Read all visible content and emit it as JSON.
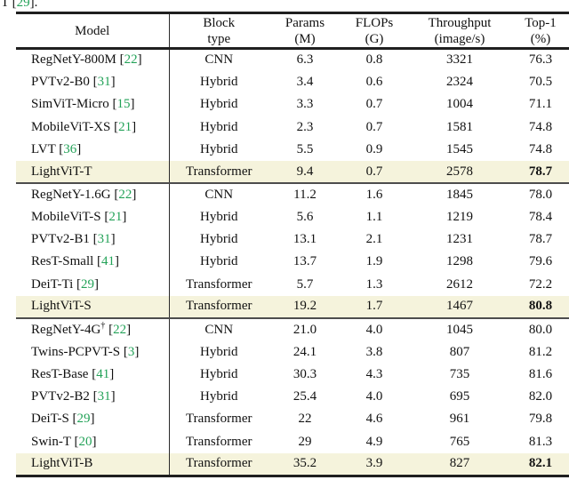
{
  "caption_fragment": {
    "prefix": "T [",
    "citation": "29",
    "suffix": "]."
  },
  "colors": {
    "citation_green": "#23a258",
    "highlight_row": "#f5f3dc",
    "rule_dark": "#1f1f1f",
    "rule_medium": "#4d4d4d",
    "text": "#111111"
  },
  "chart_data": {
    "type": "table",
    "title": "",
    "columns": [
      "Model",
      "Block type",
      "Params (M)",
      "FLOPs (G)",
      "Throughput (image/s)",
      "Top-1 (%)"
    ]
  },
  "table": {
    "columns": [
      {
        "id": "model",
        "line1": "Model",
        "line2": ""
      },
      {
        "id": "block_type",
        "line1": "Block",
        "line2": "type"
      },
      {
        "id": "params",
        "line1": "Params",
        "line2": "(M)"
      },
      {
        "id": "flops",
        "line1": "FLOPs",
        "line2": "(G)"
      },
      {
        "id": "throughput",
        "line1": "Throughput",
        "line2": "(image/s)"
      },
      {
        "id": "top1",
        "line1": "Top-1",
        "line2": "(%)"
      }
    ],
    "groups": [
      {
        "rows": [
          {
            "model": "RegNetY-800M",
            "citation": "22",
            "dagger": false,
            "block_type": "CNN",
            "params": "6.3",
            "flops": "0.8",
            "throughput": "3321",
            "top1": "76.3",
            "highlight": false,
            "top1_bold": false
          },
          {
            "model": "PVTv2-B0",
            "citation": "31",
            "dagger": false,
            "block_type": "Hybrid",
            "params": "3.4",
            "flops": "0.6",
            "throughput": "2324",
            "top1": "70.5",
            "highlight": false,
            "top1_bold": false
          },
          {
            "model": "SimViT-Micro",
            "citation": "15",
            "dagger": false,
            "block_type": "Hybrid",
            "params": "3.3",
            "flops": "0.7",
            "throughput": "1004",
            "top1": "71.1",
            "highlight": false,
            "top1_bold": false
          },
          {
            "model": "MobileViT-XS",
            "citation": "21",
            "dagger": false,
            "block_type": "Hybrid",
            "params": "2.3",
            "flops": "0.7",
            "throughput": "1581",
            "top1": "74.8",
            "highlight": false,
            "top1_bold": false
          },
          {
            "model": "LVT",
            "citation": "36",
            "dagger": false,
            "block_type": "Hybrid",
            "params": "5.5",
            "flops": "0.9",
            "throughput": "1545",
            "top1": "74.8",
            "highlight": false,
            "top1_bold": false
          },
          {
            "model": "LightViT-T",
            "citation": "",
            "dagger": false,
            "block_type": "Transformer",
            "params": "9.4",
            "flops": "0.7",
            "throughput": "2578",
            "top1": "78.7",
            "highlight": true,
            "top1_bold": true
          }
        ]
      },
      {
        "rows": [
          {
            "model": "RegNetY-1.6G",
            "citation": "22",
            "dagger": false,
            "block_type": "CNN",
            "params": "11.2",
            "flops": "1.6",
            "throughput": "1845",
            "top1": "78.0",
            "highlight": false,
            "top1_bold": false
          },
          {
            "model": "MobileViT-S",
            "citation": "21",
            "dagger": false,
            "block_type": "Hybrid",
            "params": "5.6",
            "flops": "1.1",
            "throughput": "1219",
            "top1": "78.4",
            "highlight": false,
            "top1_bold": false
          },
          {
            "model": "PVTv2-B1",
            "citation": "31",
            "dagger": false,
            "block_type": "Hybrid",
            "params": "13.1",
            "flops": "2.1",
            "throughput": "1231",
            "top1": "78.7",
            "highlight": false,
            "top1_bold": false
          },
          {
            "model": "ResT-Small",
            "citation": "41",
            "dagger": false,
            "block_type": "Hybrid",
            "params": "13.7",
            "flops": "1.9",
            "throughput": "1298",
            "top1": "79.6",
            "highlight": false,
            "top1_bold": false
          },
          {
            "model": "DeiT-Ti",
            "citation": "29",
            "dagger": false,
            "block_type": "Transformer",
            "params": "5.7",
            "flops": "1.3",
            "throughput": "2612",
            "top1": "72.2",
            "highlight": false,
            "top1_bold": false
          },
          {
            "model": "LightViT-S",
            "citation": "",
            "dagger": false,
            "block_type": "Transformer",
            "params": "19.2",
            "flops": "1.7",
            "throughput": "1467",
            "top1": "80.8",
            "highlight": true,
            "top1_bold": true
          }
        ]
      },
      {
        "rows": [
          {
            "model": "RegNetY-4G",
            "citation": "22",
            "dagger": true,
            "block_type": "CNN",
            "params": "21.0",
            "flops": "4.0",
            "throughput": "1045",
            "top1": "80.0",
            "highlight": false,
            "top1_bold": false
          },
          {
            "model": "Twins-PCPVT-S",
            "citation": "3",
            "dagger": false,
            "block_type": "Hybrid",
            "params": "24.1",
            "flops": "3.8",
            "throughput": "807",
            "top1": "81.2",
            "highlight": false,
            "top1_bold": false
          },
          {
            "model": "ResT-Base",
            "citation": "41",
            "dagger": false,
            "block_type": "Hybrid",
            "params": "30.3",
            "flops": "4.3",
            "throughput": "735",
            "top1": "81.6",
            "highlight": false,
            "top1_bold": false
          },
          {
            "model": "PVTv2-B2",
            "citation": "31",
            "dagger": false,
            "block_type": "Hybrid",
            "params": "25.4",
            "flops": "4.0",
            "throughput": "695",
            "top1": "82.0",
            "highlight": false,
            "top1_bold": false
          },
          {
            "model": "DeiT-S",
            "citation": "29",
            "dagger": false,
            "block_type": "Transformer",
            "params": "22",
            "flops": "4.6",
            "throughput": "961",
            "top1": "79.8",
            "highlight": false,
            "top1_bold": false
          },
          {
            "model": "Swin-T",
            "citation": "20",
            "dagger": false,
            "block_type": "Transformer",
            "params": "29",
            "flops": "4.9",
            "throughput": "765",
            "top1": "81.3",
            "highlight": false,
            "top1_bold": false
          },
          {
            "model": "LightViT-B",
            "citation": "",
            "dagger": false,
            "block_type": "Transformer",
            "params": "35.2",
            "flops": "3.9",
            "throughput": "827",
            "top1": "82.1",
            "highlight": true,
            "top1_bold": true
          }
        ]
      }
    ]
  }
}
